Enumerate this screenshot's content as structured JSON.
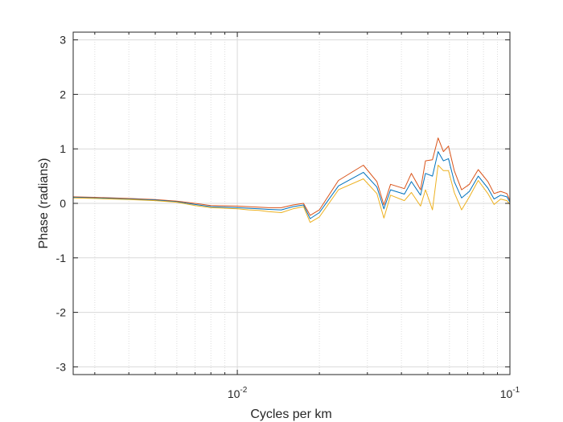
{
  "chart_data": {
    "type": "line",
    "title": "",
    "xlabel": "Cycles per km",
    "ylabel": "Phase (radians)",
    "x_scale": "log",
    "xlim": [
      0.0025,
      0.1
    ],
    "ylim": [
      -3.1416,
      3.1416
    ],
    "grid": true,
    "minor_grid": true,
    "x_ticks": [
      {
        "value": 0.01,
        "base": "10",
        "exp": "-2"
      },
      {
        "value": 0.1,
        "base": "10",
        "exp": "-1"
      }
    ],
    "y_ticks": [
      {
        "value": -3,
        "label": "-3"
      },
      {
        "value": -2,
        "label": "-2"
      },
      {
        "value": -1,
        "label": "-1"
      },
      {
        "value": 0,
        "label": "0"
      },
      {
        "value": 1,
        "label": "1"
      },
      {
        "value": 2,
        "label": "2"
      },
      {
        "value": 3,
        "label": "3"
      }
    ],
    "x": [
      0.0025,
      0.003,
      0.004,
      0.005,
      0.006,
      0.007,
      0.008,
      0.01,
      0.011,
      0.012,
      0.013,
      0.0145,
      0.016,
      0.0175,
      0.0185,
      0.02,
      0.0235,
      0.029,
      0.0325,
      0.0345,
      0.0365,
      0.041,
      0.0435,
      0.047,
      0.049,
      0.052,
      0.0545,
      0.057,
      0.0595,
      0.0625,
      0.0665,
      0.071,
      0.0765,
      0.083,
      0.0875,
      0.0925,
      0.0975,
      0.1
    ],
    "series": [
      {
        "color": "#D95319",
        "values": [
          0.12,
          0.11,
          0.09,
          0.07,
          0.04,
          0.0,
          -0.04,
          -0.05,
          -0.06,
          -0.07,
          -0.08,
          -0.08,
          -0.03,
          0.0,
          -0.22,
          -0.12,
          0.42,
          0.7,
          0.4,
          -0.03,
          0.35,
          0.27,
          0.55,
          0.25,
          0.78,
          0.8,
          1.2,
          0.95,
          1.05,
          0.6,
          0.25,
          0.35,
          0.62,
          0.4,
          0.18,
          0.22,
          0.18,
          0.05
        ]
      },
      {
        "color": "#0072BD",
        "values": [
          0.11,
          0.1,
          0.08,
          0.06,
          0.03,
          -0.02,
          -0.06,
          -0.08,
          -0.09,
          -0.1,
          -0.11,
          -0.12,
          -0.06,
          -0.03,
          -0.28,
          -0.17,
          0.32,
          0.57,
          0.3,
          -0.1,
          0.25,
          0.17,
          0.4,
          0.15,
          0.55,
          0.5,
          0.95,
          0.78,
          0.82,
          0.4,
          0.1,
          0.22,
          0.5,
          0.28,
          0.08,
          0.15,
          0.12,
          0.02
        ]
      },
      {
        "color": "#EDB120",
        "values": [
          0.1,
          0.09,
          0.07,
          0.05,
          0.02,
          -0.04,
          -0.08,
          -0.1,
          -0.12,
          -0.13,
          -0.15,
          -0.17,
          -0.1,
          -0.06,
          -0.35,
          -0.25,
          0.25,
          0.45,
          0.18,
          -0.27,
          0.15,
          0.05,
          0.2,
          -0.05,
          0.25,
          -0.12,
          0.7,
          0.6,
          0.6,
          0.2,
          -0.12,
          0.12,
          0.42,
          0.18,
          -0.02,
          0.08,
          0.05,
          -0.02
        ]
      }
    ]
  }
}
